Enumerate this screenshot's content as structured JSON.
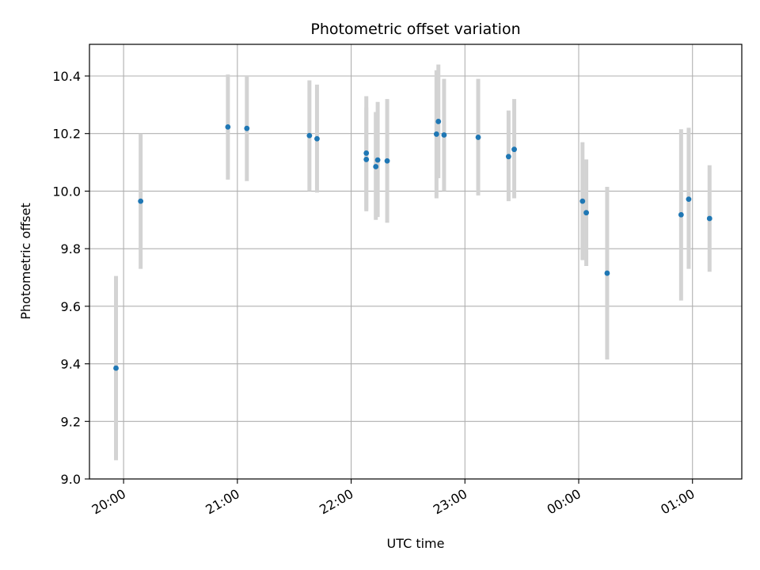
{
  "chart_data": {
    "type": "scatter",
    "title": "Photometric offset variation",
    "xlabel": "UTC time",
    "ylabel": "Photometric offset",
    "grid": true,
    "colors": {
      "marker": "#1f77b4",
      "errorbar": "#d3d3d3",
      "grid": "#b0b0b0",
      "axes": "#000000"
    },
    "x_ticks": [
      "20:00",
      "21:00",
      "22:00",
      "23:00",
      "00:00",
      "01:00"
    ],
    "x_tick_times": [
      "19:60",
      "20:60",
      "21:60",
      "22:60",
      "23:60",
      "24:60"
    ],
    "xlim": [
      "19:42",
      "25:26"
    ],
    "y_ticks": [
      "9.0",
      "9.2",
      "9.4",
      "9.6",
      "9.8",
      "10.0",
      "10.2",
      "10.4"
    ],
    "ylim": [
      9.0,
      10.51
    ],
    "points": [
      {
        "t": "19:56",
        "y": 9.385,
        "lo": 9.065,
        "hi": 9.705
      },
      {
        "t": "20:09",
        "y": 9.965,
        "lo": 9.73,
        "hi": 10.2
      },
      {
        "t": "20:55",
        "y": 10.223,
        "lo": 10.04,
        "hi": 10.405
      },
      {
        "t": "21:05",
        "y": 10.218,
        "lo": 10.035,
        "hi": 10.4
      },
      {
        "t": "21:38",
        "y": 10.193,
        "lo": 10.0,
        "hi": 10.385
      },
      {
        "t": "21:42",
        "y": 10.182,
        "lo": 9.995,
        "hi": 10.37
      },
      {
        "t": "22:08",
        "y": 10.132,
        "lo": 9.935,
        "hi": 10.33
      },
      {
        "t": "22:08",
        "y": 10.11,
        "lo": 9.93,
        "hi": 10.29
      },
      {
        "t": "22:13",
        "y": 10.085,
        "lo": 9.9,
        "hi": 10.275
      },
      {
        "t": "22:14",
        "y": 10.108,
        "lo": 9.91,
        "hi": 10.31
      },
      {
        "t": "22:19",
        "y": 10.105,
        "lo": 9.89,
        "hi": 10.32
      },
      {
        "t": "22:45",
        "y": 10.198,
        "lo": 9.975,
        "hi": 10.42
      },
      {
        "t": "22:46",
        "y": 10.242,
        "lo": 10.045,
        "hi": 10.44
      },
      {
        "t": "22:49",
        "y": 10.195,
        "lo": 10.0,
        "hi": 10.39
      },
      {
        "t": "23:07",
        "y": 10.187,
        "lo": 9.985,
        "hi": 10.39
      },
      {
        "t": "23:23",
        "y": 10.12,
        "lo": 9.965,
        "hi": 10.28
      },
      {
        "t": "23:26",
        "y": 10.145,
        "lo": 9.975,
        "hi": 10.32
      },
      {
        "t": "24:02",
        "y": 9.965,
        "lo": 9.76,
        "hi": 10.17
      },
      {
        "t": "24:04",
        "y": 9.925,
        "lo": 9.74,
        "hi": 10.11
      },
      {
        "t": "24:15",
        "y": 9.715,
        "lo": 9.415,
        "hi": 10.015
      },
      {
        "t": "24:54",
        "y": 9.918,
        "lo": 9.62,
        "hi": 10.215
      },
      {
        "t": "24:58",
        "y": 9.972,
        "lo": 9.73,
        "hi": 10.22
      },
      {
        "t": "25:09",
        "y": 9.905,
        "lo": 9.72,
        "hi": 10.09
      }
    ]
  }
}
